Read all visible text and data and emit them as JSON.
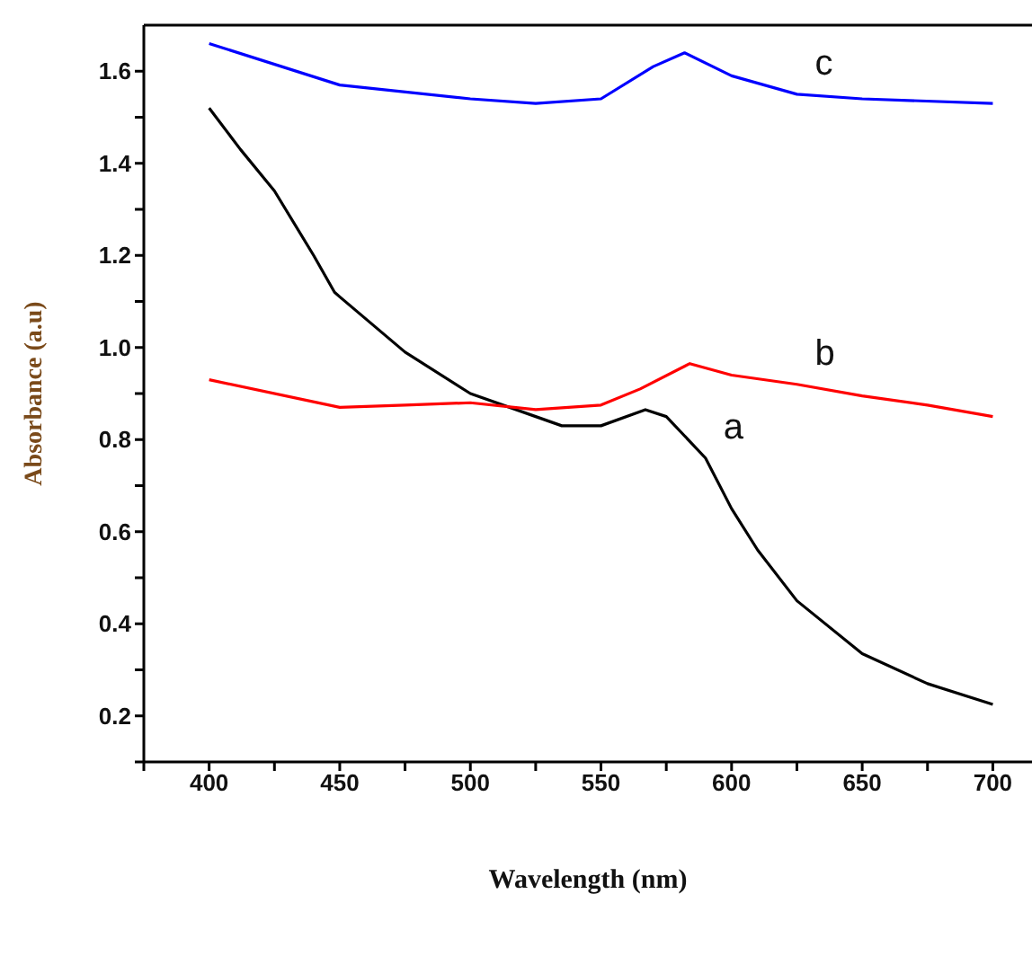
{
  "chart_data": {
    "type": "line",
    "xlabel": "Wavelength (nm)",
    "ylabel": "Absorbance (a.u)",
    "xlim": [
      375,
      715
    ],
    "ylim": [
      0.1,
      1.7
    ],
    "xticks": [
      {
        "value": 375,
        "label": null
      },
      400,
      {
        "value": 425,
        "label": null
      },
      450,
      {
        "value": 475,
        "label": null
      },
      500,
      {
        "value": 525,
        "label": null
      },
      550,
      {
        "value": 575,
        "label": null
      },
      600,
      {
        "value": 625,
        "label": null
      },
      650,
      {
        "value": 675,
        "label": null
      },
      700
    ],
    "yticks": [
      {
        "value": 0.1,
        "label": null
      },
      0.2,
      {
        "value": 0.3,
        "label": null
      },
      0.4,
      {
        "value": 0.5,
        "label": null
      },
      0.6,
      {
        "value": 0.7,
        "label": null
      },
      0.8,
      {
        "value": 0.9,
        "label": null
      },
      {
        "value": 1.0,
        "label": "1.0"
      },
      {
        "value": 1.1,
        "label": null
      },
      1.2,
      {
        "value": 1.3,
        "label": null
      },
      1.4,
      {
        "value": 1.5,
        "label": null
      },
      1.6
    ],
    "grid": false,
    "legend": false,
    "marker": "none",
    "line_style": "solid",
    "series": [
      {
        "name": "a",
        "color": "#000000",
        "x": [
          400,
          412,
          425,
          440,
          448,
          450,
          475,
          500,
          525,
          535,
          550,
          567,
          575,
          590,
          600,
          610,
          625,
          650,
          675,
          700
        ],
        "values": [
          1.52,
          1.43,
          1.34,
          1.2,
          1.12,
          1.11,
          0.99,
          0.9,
          0.85,
          0.83,
          0.83,
          0.865,
          0.85,
          0.76,
          0.65,
          0.56,
          0.45,
          0.335,
          0.27,
          0.225
        ]
      },
      {
        "name": "b",
        "color": "#ff0000",
        "x": [
          400,
          450,
          475,
          500,
          525,
          550,
          565,
          584,
          600,
          625,
          650,
          675,
          700
        ],
        "values": [
          0.93,
          0.87,
          0.875,
          0.88,
          0.865,
          0.875,
          0.91,
          0.965,
          0.94,
          0.92,
          0.895,
          0.875,
          0.85
        ]
      },
      {
        "name": "c",
        "color": "#0000ff",
        "x": [
          400,
          450,
          500,
          525,
          550,
          570,
          582,
          600,
          625,
          650,
          700
        ],
        "values": [
          1.66,
          1.57,
          1.54,
          1.53,
          1.54,
          1.61,
          1.64,
          1.59,
          1.55,
          1.54,
          1.53
        ]
      }
    ]
  }
}
